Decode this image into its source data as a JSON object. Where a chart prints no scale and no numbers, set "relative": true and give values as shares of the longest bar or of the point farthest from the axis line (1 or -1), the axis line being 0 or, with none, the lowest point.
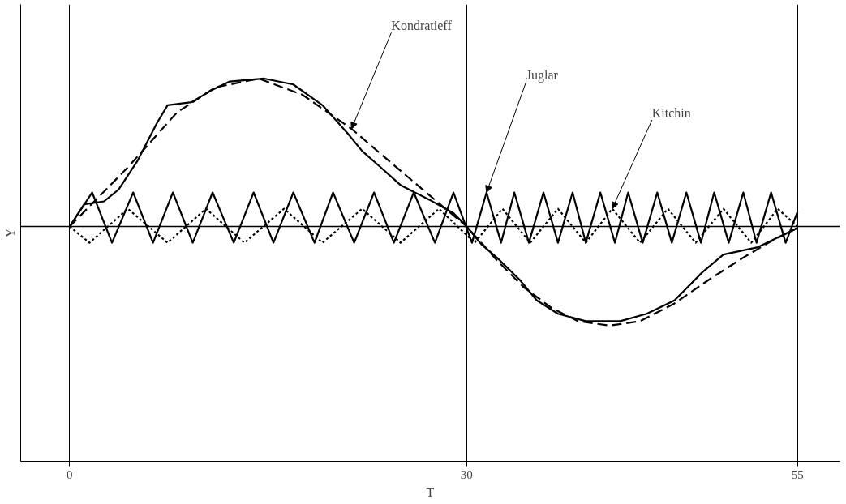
{
  "chart_data": {
    "type": "line",
    "relative": true,
    "xlabel": "T",
    "ylabel": "Y",
    "xlim": [
      -3.7,
      58.2
    ],
    "xticks": [
      0,
      30,
      55
    ],
    "grid": "x",
    "marker": "none",
    "ref_lines": [
      {
        "axis": "y",
        "value": 0,
        "color": "#000000"
      }
    ],
    "series": [
      {
        "name": "Kondratieff",
        "color": "#000000",
        "line_style": "dashed",
        "x": [
          0,
          4.4,
          8.1,
          11.0,
          14.3,
          17.6,
          21.3,
          24.3,
          27.2,
          30,
          32.2,
          34.3,
          36.4,
          38.4,
          40.8,
          43.1,
          45.7,
          48.3,
          50.9,
          53.0,
          55
        ],
        "values": [
          0,
          0.4,
          0.77,
          0.94,
          1.0,
          0.89,
          0.66,
          0.43,
          0.21,
          0,
          -0.22,
          -0.41,
          -0.55,
          -0.64,
          -0.67,
          -0.64,
          -0.52,
          -0.36,
          -0.21,
          -0.1,
          -0.01
        ]
      },
      {
        "color": "#000000",
        "line_style": "solid",
        "x": [
          0,
          1.1,
          2.6,
          3.7,
          5.1,
          6.6,
          7.4,
          9.2,
          10.7,
          12.1,
          14.7,
          16.9,
          19.1,
          21.0,
          22.1,
          23.5,
          25.0,
          27.2,
          29.0,
          30,
          31.1,
          32.4,
          34.0,
          35.3,
          36.9,
          39.0,
          41.6,
          43.6,
          45.7,
          47.8,
          49.4,
          52.0,
          55
        ],
        "values": [
          0,
          0.15,
          0.17,
          0.25,
          0.44,
          0.7,
          0.82,
          0.84,
          0.92,
          0.98,
          1.0,
          0.96,
          0.82,
          0.63,
          0.51,
          0.4,
          0.28,
          0.18,
          0.09,
          0,
          -0.12,
          -0.22,
          -0.36,
          -0.5,
          -0.59,
          -0.64,
          -0.64,
          -0.59,
          -0.5,
          -0.31,
          -0.19,
          -0.14,
          -0.01
        ]
      },
      {
        "name": "Juglar",
        "color": "#000000",
        "line_style": "solid",
        "x": [
          0,
          1.7,
          3.2,
          4.8,
          6.3,
          7.8,
          9.3,
          10.8,
          12.4,
          13.9,
          15.4,
          16.9,
          18.5,
          19.9,
          21.5,
          23.0,
          24.5,
          26.0,
          27.6,
          29.0,
          30.4,
          31.5,
          32.6,
          33.6,
          34.7,
          35.8,
          36.9,
          38.0,
          39.0,
          40.1,
          41.2,
          42.2,
          43.3,
          44.4,
          45.5,
          46.6,
          47.7,
          48.7,
          49.8,
          50.9,
          51.9,
          53.0,
          54.1,
          55
        ],
        "values": [
          0,
          0.23,
          -0.11,
          0.23,
          -0.11,
          0.23,
          -0.11,
          0.23,
          -0.11,
          0.23,
          -0.11,
          0.23,
          -0.11,
          0.23,
          -0.11,
          0.23,
          -0.11,
          0.23,
          -0.11,
          0.23,
          -0.11,
          0.23,
          -0.11,
          0.23,
          -0.11,
          0.23,
          -0.11,
          0.23,
          -0.11,
          0.23,
          -0.11,
          0.23,
          -0.11,
          0.23,
          -0.11,
          0.23,
          -0.11,
          0.23,
          -0.11,
          0.23,
          -0.11,
          0.23,
          -0.11,
          0.1
        ]
      },
      {
        "name": "Kitchin",
        "color": "#000000",
        "line_style": "dotted",
        "x": [
          0,
          1.5,
          4.4,
          7.4,
          10.3,
          13.2,
          16.2,
          19.1,
          22.1,
          25.0,
          27.9,
          30.6,
          32.7,
          34.8,
          36.9,
          39.0,
          41.0,
          43.1,
          45.2,
          47.3,
          49.4,
          51.5,
          53.5,
          55
        ],
        "values": [
          0,
          -0.11,
          0.12,
          -0.11,
          0.12,
          -0.11,
          0.12,
          -0.11,
          0.12,
          -0.11,
          0.12,
          -0.11,
          0.12,
          -0.11,
          0.12,
          -0.11,
          0.12,
          -0.11,
          0.12,
          -0.11,
          0.12,
          -0.11,
          0.12,
          0
        ]
      }
    ]
  }
}
